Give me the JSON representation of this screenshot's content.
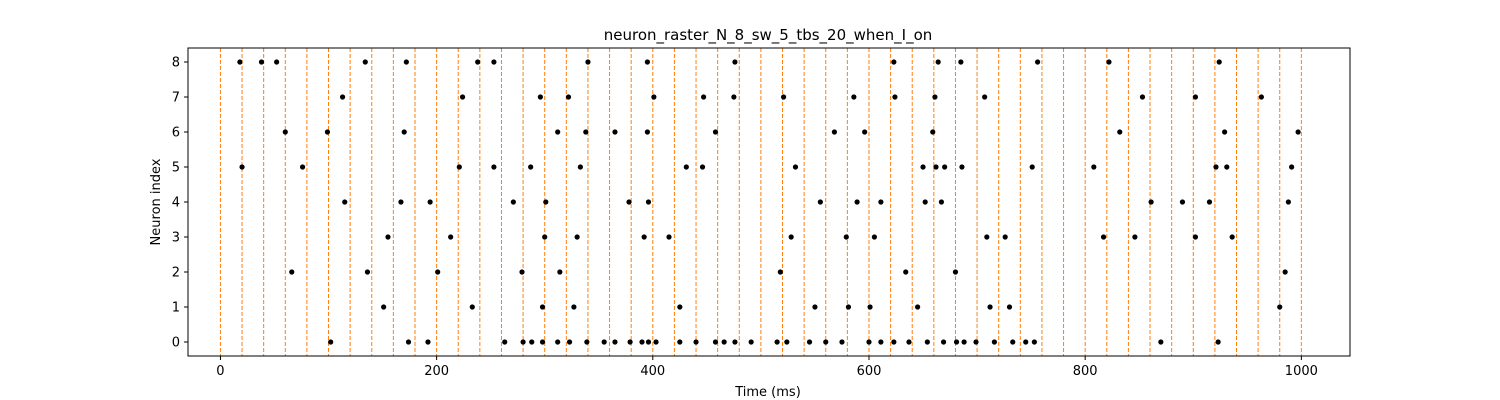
{
  "chart_data": {
    "type": "scatter",
    "title": "neuron_raster_N_8_sw_5_tbs_20_when_I_on",
    "xlabel": "Time (ms)",
    "ylabel": "Neuron index",
    "xlim": [
      -30,
      1045
    ],
    "ylim": [
      -0.4,
      8.4
    ],
    "xticks": [
      0,
      200,
      400,
      600,
      800,
      1000
    ],
    "yticks": [
      0,
      1,
      2,
      3,
      4,
      5,
      6,
      7,
      8
    ],
    "grid": false,
    "legend": "none",
    "marker_color": "#000000",
    "vline_color": "#ff7f0e",
    "vline_style": "dashed",
    "vlines": [
      0,
      20,
      40,
      60,
      80,
      100,
      120,
      140,
      160,
      180,
      200,
      220,
      240,
      260,
      280,
      300,
      320,
      340,
      360,
      380,
      400,
      420,
      440,
      460,
      480,
      500,
      520,
      540,
      560,
      580,
      600,
      620,
      640,
      660,
      680,
      700,
      720,
      740,
      760,
      780,
      800,
      820,
      840,
      860,
      880,
      900,
      920,
      940,
      960,
      980,
      1000
    ],
    "series": [
      {
        "values": [
          [
            18,
            8
          ],
          [
            38,
            8
          ],
          [
            52,
            8
          ],
          [
            134,
            8
          ],
          [
            172,
            8
          ],
          [
            238,
            8
          ],
          [
            253,
            8
          ],
          [
            340,
            8
          ],
          [
            395,
            8
          ],
          [
            476,
            8
          ],
          [
            623,
            8
          ],
          [
            664,
            8
          ],
          [
            685,
            8
          ],
          [
            756,
            8
          ],
          [
            822,
            8
          ],
          [
            924,
            8
          ],
          [
            113,
            7
          ],
          [
            224,
            7
          ],
          [
            296,
            7
          ],
          [
            322,
            7
          ],
          [
            401,
            7
          ],
          [
            447,
            7
          ],
          [
            475,
            7
          ],
          [
            521,
            7
          ],
          [
            586,
            7
          ],
          [
            624,
            7
          ],
          [
            661,
            7
          ],
          [
            707,
            7
          ],
          [
            853,
            7
          ],
          [
            902,
            7
          ],
          [
            963,
            7
          ],
          [
            60,
            6
          ],
          [
            99,
            6
          ],
          [
            170,
            6
          ],
          [
            312,
            6
          ],
          [
            338,
            6
          ],
          [
            365,
            6
          ],
          [
            395,
            6
          ],
          [
            458,
            6
          ],
          [
            568,
            6
          ],
          [
            596,
            6
          ],
          [
            659,
            6
          ],
          [
            832,
            6
          ],
          [
            929,
            6
          ],
          [
            997,
            6
          ],
          [
            20,
            5
          ],
          [
            76,
            5
          ],
          [
            221,
            5
          ],
          [
            253,
            5
          ],
          [
            287,
            5
          ],
          [
            333,
            5
          ],
          [
            431,
            5
          ],
          [
            446,
            5
          ],
          [
            532,
            5
          ],
          [
            650,
            5
          ],
          [
            662,
            5
          ],
          [
            670,
            5
          ],
          [
            686,
            5
          ],
          [
            751,
            5
          ],
          [
            808,
            5
          ],
          [
            921,
            5
          ],
          [
            931,
            5
          ],
          [
            991,
            5
          ],
          [
            115,
            4
          ],
          [
            167,
            4
          ],
          [
            194,
            4
          ],
          [
            271,
            4
          ],
          [
            301,
            4
          ],
          [
            378,
            4
          ],
          [
            396,
            4
          ],
          [
            555,
            4
          ],
          [
            589,
            4
          ],
          [
            611,
            4
          ],
          [
            652,
            4
          ],
          [
            667,
            4
          ],
          [
            861,
            4
          ],
          [
            890,
            4
          ],
          [
            915,
            4
          ],
          [
            988,
            4
          ],
          [
            155,
            3
          ],
          [
            213,
            3
          ],
          [
            300,
            3
          ],
          [
            330,
            3
          ],
          [
            392,
            3
          ],
          [
            415,
            3
          ],
          [
            528,
            3
          ],
          [
            579,
            3
          ],
          [
            605,
            3
          ],
          [
            709,
            3
          ],
          [
            726,
            3
          ],
          [
            817,
            3
          ],
          [
            846,
            3
          ],
          [
            902,
            3
          ],
          [
            936,
            3
          ],
          [
            66,
            2
          ],
          [
            136,
            2
          ],
          [
            201,
            2
          ],
          [
            279,
            2
          ],
          [
            314,
            2
          ],
          [
            518,
            2
          ],
          [
            634,
            2
          ],
          [
            680,
            2
          ],
          [
            985,
            2
          ],
          [
            151,
            1
          ],
          [
            233,
            1
          ],
          [
            298,
            1
          ],
          [
            327,
            1
          ],
          [
            425,
            1
          ],
          [
            550,
            1
          ],
          [
            581,
            1
          ],
          [
            601,
            1
          ],
          [
            645,
            1
          ],
          [
            712,
            1
          ],
          [
            730,
            1
          ],
          [
            980,
            1
          ],
          [
            102,
            0
          ],
          [
            174,
            0
          ],
          [
            192,
            0
          ],
          [
            263,
            0
          ],
          [
            280,
            0
          ],
          [
            288,
            0
          ],
          [
            298,
            0
          ],
          [
            312,
            0
          ],
          [
            323,
            0
          ],
          [
            339,
            0
          ],
          [
            355,
            0
          ],
          [
            365,
            0
          ],
          [
            379,
            0
          ],
          [
            390,
            0
          ],
          [
            396,
            0
          ],
          [
            403,
            0
          ],
          [
            425,
            0
          ],
          [
            440,
            0
          ],
          [
            458,
            0
          ],
          [
            466,
            0
          ],
          [
            476,
            0
          ],
          [
            491,
            0
          ],
          [
            515,
            0
          ],
          [
            524,
            0
          ],
          [
            545,
            0
          ],
          [
            560,
            0
          ],
          [
            575,
            0
          ],
          [
            600,
            0
          ],
          [
            611,
            0
          ],
          [
            623,
            0
          ],
          [
            637,
            0
          ],
          [
            654,
            0
          ],
          [
            669,
            0
          ],
          [
            681,
            0
          ],
          [
            688,
            0
          ],
          [
            699,
            0
          ],
          [
            716,
            0
          ],
          [
            733,
            0
          ],
          [
            745,
            0
          ],
          [
            753,
            0
          ],
          [
            870,
            0
          ],
          [
            923,
            0
          ]
        ]
      }
    ]
  }
}
